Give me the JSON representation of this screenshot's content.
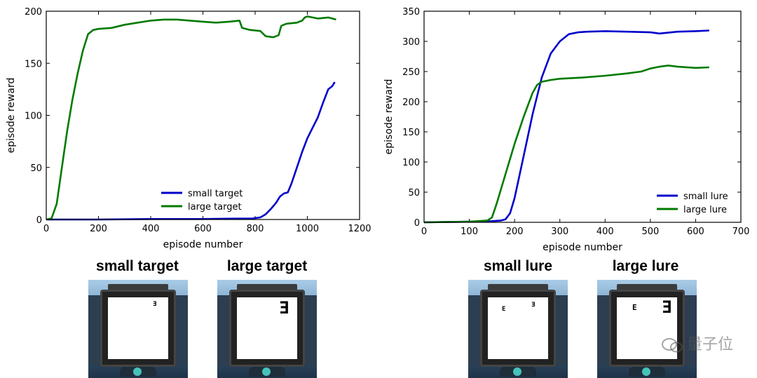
{
  "chart_data": [
    {
      "type": "line",
      "xlabel": "episode number",
      "ylabel": "episode reward",
      "xlim": [
        0,
        1200
      ],
      "ylim": [
        0,
        200
      ],
      "xticks": [
        0,
        200,
        400,
        600,
        800,
        1000,
        1200
      ],
      "yticks": [
        0,
        50,
        100,
        150,
        200
      ],
      "grid": false,
      "legend_position": "bottom-right",
      "series": [
        {
          "name": "small target",
          "color": "#0000cc",
          "x": [
            0,
            100,
            200,
            400,
            600,
            700,
            790,
            820,
            840,
            860,
            880,
            895,
            910,
            925,
            940,
            960,
            980,
            1000,
            1020,
            1040,
            1060,
            1080,
            1095,
            1105
          ],
          "y": [
            0,
            0,
            0,
            0.5,
            0.5,
            0.8,
            1,
            2,
            5,
            10,
            16,
            22,
            25,
            26,
            35,
            50,
            65,
            78,
            88,
            98,
            112,
            125,
            128,
            132
          ]
        },
        {
          "name": "large target",
          "color": "#007a00",
          "x": [
            0,
            20,
            40,
            60,
            80,
            100,
            120,
            140,
            160,
            180,
            200,
            250,
            300,
            350,
            400,
            450,
            500,
            550,
            600,
            650,
            700,
            740,
            750,
            780,
            820,
            840,
            870,
            890,
            900,
            920,
            960,
            980,
            990,
            1000,
            1040,
            1080,
            1110
          ],
          "y": [
            0,
            1,
            15,
            50,
            85,
            115,
            140,
            162,
            178,
            182,
            183,
            184,
            187,
            189,
            191,
            192,
            192,
            191,
            190,
            189,
            190,
            191,
            184,
            182,
            181,
            176,
            175,
            177,
            186,
            188,
            189,
            191,
            194,
            195,
            193,
            194,
            192
          ]
        }
      ]
    },
    {
      "type": "line",
      "xlabel": "episode number",
      "ylabel": "episode reward",
      "xlim": [
        0,
        700
      ],
      "ylim": [
        0,
        350
      ],
      "xticks": [
        0,
        100,
        200,
        300,
        400,
        500,
        600,
        700
      ],
      "yticks": [
        0,
        50,
        100,
        150,
        200,
        250,
        300,
        350
      ],
      "grid": false,
      "legend_position": "bottom-right",
      "series": [
        {
          "name": "small lure",
          "color": "#0000cc",
          "x": [
            0,
            100,
            150,
            170,
            180,
            190,
            200,
            220,
            240,
            260,
            280,
            300,
            320,
            340,
            360,
            400,
            450,
            500,
            520,
            560,
            600,
            630
          ],
          "y": [
            0,
            1,
            2,
            3,
            5,
            15,
            40,
            110,
            180,
            240,
            280,
            300,
            312,
            315,
            316,
            317,
            316,
            315,
            313,
            316,
            317,
            318
          ]
        },
        {
          "name": "large lure",
          "color": "#007a00",
          "x": [
            0,
            100,
            140,
            150,
            160,
            180,
            200,
            220,
            240,
            250,
            260,
            280,
            300,
            350,
            400,
            450,
            480,
            500,
            520,
            540,
            560,
            600,
            630
          ],
          "y": [
            0,
            1,
            3,
            8,
            30,
            80,
            130,
            175,
            215,
            228,
            233,
            236,
            238,
            240,
            243,
            247,
            250,
            255,
            258,
            260,
            258,
            256,
            257
          ]
        }
      ]
    }
  ],
  "thumbnails": [
    {
      "caption": "small target",
      "glyph": "Ǝ",
      "glyph2": ""
    },
    {
      "caption": "large target",
      "glyph": "Ǝ",
      "glyph2": ""
    },
    {
      "caption": "small lure",
      "glyph": "Ǝ",
      "glyph2": "E"
    },
    {
      "caption": "large lure",
      "glyph": "Ǝ",
      "glyph2": "E"
    }
  ],
  "watermark": "量子位"
}
